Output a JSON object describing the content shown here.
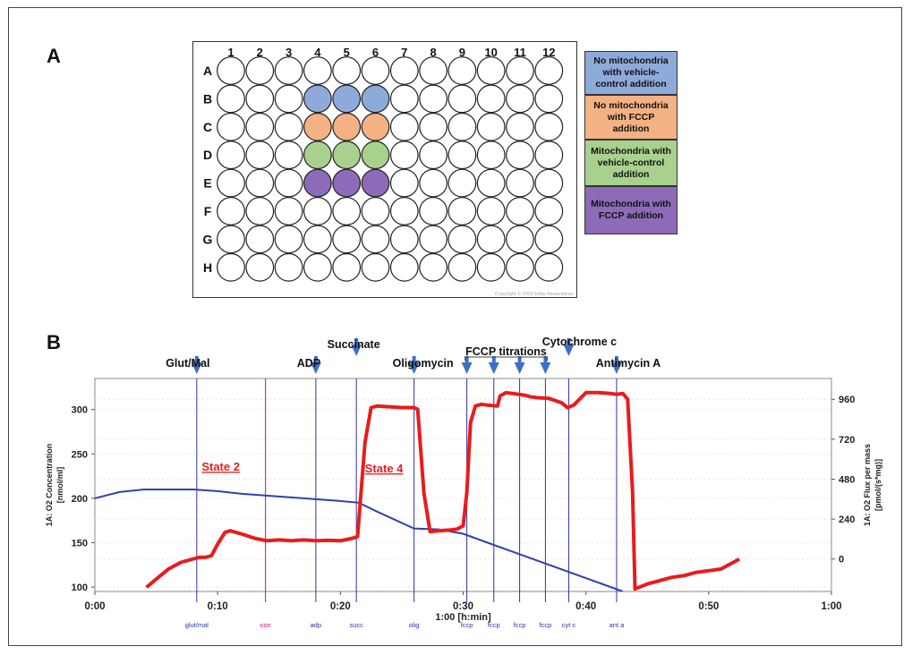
{
  "panel_a_label": "A",
  "panel_b_label": "B",
  "plate": {
    "columns": [
      "1",
      "2",
      "3",
      "4",
      "5",
      "6",
      "7",
      "8",
      "9",
      "10",
      "11",
      "12"
    ],
    "rows": [
      "A",
      "B",
      "C",
      "D",
      "E",
      "F",
      "G",
      "H"
    ],
    "filled": [
      {
        "row": "B",
        "cols": [
          4,
          5,
          6
        ],
        "color": "#8eaadb"
      },
      {
        "row": "C",
        "cols": [
          4,
          5,
          6
        ],
        "color": "#f4b183"
      },
      {
        "row": "D",
        "cols": [
          4,
          5,
          6
        ],
        "color": "#a9d18e"
      },
      {
        "row": "E",
        "cols": [
          4,
          5,
          6
        ],
        "color": "#8e6bb8"
      }
    ],
    "copyright": "Copyright © 2009 Edita Aksamitiene"
  },
  "legend": [
    {
      "label": "No mitochondria with vehicle-control addition",
      "color": "#8eaadb"
    },
    {
      "label": "No mitochondria with FCCP addition",
      "color": "#f4b183"
    },
    {
      "label": "Mitochondria with vehicle-control addition",
      "color": "#a9d18e"
    },
    {
      "label": "Mitochondria with FCCP addition",
      "color": "#8e6bb8"
    }
  ],
  "chart_data": {
    "type": "line",
    "xlabel": "1:00 [h:min]",
    "ylabel_left": "1A: O2 Concentration [nmol/ml]",
    "ylabel_right": "1A: O2 Flux per mass [pmol/(s*mg)]",
    "x_ticks": [
      "0:00",
      "0:10",
      "0:20",
      "0:30",
      "0:40",
      "0:50",
      "1:00"
    ],
    "x_range_min": [
      0,
      60
    ],
    "ylim_left": [
      95,
      335
    ],
    "yticks_left": [
      100,
      150,
      200,
      250,
      300
    ],
    "ylim_right": [
      -195,
      1085
    ],
    "yticks_right": [
      0,
      240,
      480,
      720,
      960
    ],
    "series": [
      {
        "color": "#3040b0",
        "x": [
          0,
          2,
          4,
          6,
          8,
          10,
          12,
          14,
          16,
          18,
          20,
          21.5,
          23,
          26,
          28,
          30,
          32,
          34,
          36,
          38,
          40,
          42,
          43
        ],
        "y": [
          200,
          207,
          210,
          210,
          210,
          208,
          205,
          203,
          201,
          199,
          197,
          195,
          185,
          166,
          165,
          160,
          150,
          140,
          130,
          120,
          110,
          100,
          95
        ]
      },
      {
        "color": "#e81c1c",
        "x": [
          4.2,
          5,
          6,
          7,
          8,
          8.5,
          9,
          9.5,
          10,
          10.6,
          11,
          12,
          13,
          14,
          15,
          16,
          17,
          18,
          19,
          20,
          21,
          21.4,
          22,
          22.5,
          23,
          24,
          25,
          26,
          26.3,
          26.8,
          27.3,
          28,
          29,
          29.5,
          30,
          30.3,
          30.6,
          31,
          31.5,
          32,
          32.8,
          33,
          33.5,
          34,
          35,
          35.5,
          36,
          37,
          38,
          38.5,
          39,
          40,
          41,
          42,
          42.5,
          43,
          43.4,
          43.8,
          44,
          45,
          46,
          47,
          48,
          49,
          50,
          51,
          52,
          52.5
        ],
        "y": [
          -170,
          -120,
          -60,
          -20,
          0,
          10,
          10,
          20,
          90,
          160,
          170,
          150,
          125,
          110,
          115,
          110,
          115,
          110,
          112,
          110,
          125,
          135,
          700,
          910,
          920,
          915,
          910,
          910,
          900,
          400,
          165,
          170,
          175,
          180,
          200,
          400,
          820,
          920,
          930,
          925,
          920,
          980,
          1000,
          995,
          985,
          975,
          970,
          965,
          940,
          910,
          925,
          1000,
          1000,
          995,
          990,
          995,
          960,
          400,
          -180,
          -150,
          -130,
          -110,
          -100,
          -80,
          -70,
          -60,
          -20,
          0
        ]
      }
    ],
    "markers": [
      {
        "x": 8.3,
        "label": "Glut/Mal",
        "tick": "glut/mal",
        "arrow": true,
        "color": "#2a36a0"
      },
      {
        "x": 13.9,
        "label": "",
        "tick": "con",
        "arrow": false,
        "color": "#c0106a"
      },
      {
        "x": 18.0,
        "label": "ADP",
        "tick": "adp",
        "arrow": true,
        "color": "#2a36a0"
      },
      {
        "x": 21.3,
        "label": "Succinate",
        "tick": "succ",
        "arrow": true,
        "color": "#2a36a0"
      },
      {
        "x": 26.0,
        "label": "Oligomycin",
        "tick": "olig",
        "arrow": true,
        "color": "#2a36a0"
      },
      {
        "x": 30.3,
        "label": "",
        "tick": "fccp",
        "arrow": true,
        "color": "#2a36a0"
      },
      {
        "x": 32.5,
        "label": "",
        "tick": "fccp",
        "arrow": true,
        "color": "#2a36a0"
      },
      {
        "x": 34.6,
        "label": "",
        "tick": "fccp",
        "arrow": true,
        "color": "#2a36a0"
      },
      {
        "x": 36.7,
        "label": "",
        "tick": "fccp",
        "arrow": true,
        "color": "#2a36a0"
      },
      {
        "x": 38.6,
        "label": "Cytochrome c",
        "tick": "cyt c",
        "arrow": true,
        "color": "#2a36a0"
      },
      {
        "x": 42.5,
        "label": "Antimycin A",
        "tick": "ant a",
        "arrow": true,
        "color": "#2a36a0"
      }
    ],
    "group_label": {
      "label": "FCCP titrations",
      "from": 30.3,
      "to": 36.7
    },
    "annotations": [
      {
        "text": "State 2",
        "x": 8.7,
        "y": 530,
        "color": "#e81c1c"
      },
      {
        "text": "State 4",
        "x": 22.0,
        "y": 520,
        "color": "#e81c1c"
      }
    ]
  }
}
